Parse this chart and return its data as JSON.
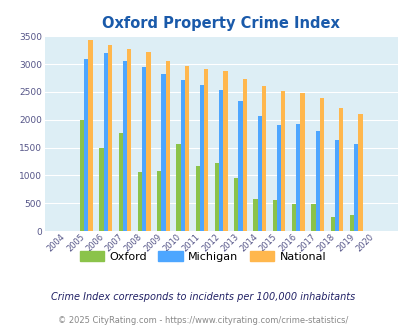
{
  "title": "Oxford Property Crime Index",
  "years": [
    "2004",
    "2005",
    "2006",
    "2007",
    "2008",
    "2009",
    "2010",
    "2011",
    "2012",
    "2013",
    "2014",
    "2015",
    "2016",
    "2017",
    "2018",
    "2019",
    "2020"
  ],
  "oxford": [
    0,
    2000,
    1500,
    1770,
    1060,
    1070,
    1570,
    1170,
    1230,
    960,
    570,
    560,
    490,
    490,
    250,
    285,
    0
  ],
  "michigan": [
    0,
    3100,
    3200,
    3060,
    2940,
    2830,
    2720,
    2620,
    2540,
    2340,
    2060,
    1910,
    1930,
    1800,
    1640,
    1570,
    0
  ],
  "national": [
    0,
    3430,
    3340,
    3280,
    3210,
    3050,
    2960,
    2920,
    2870,
    2730,
    2600,
    2510,
    2480,
    2390,
    2210,
    2110,
    0
  ],
  "oxford_color": "#8bc34a",
  "michigan_color": "#4da6ff",
  "national_color": "#ffb74d",
  "bg_color": "#ddeef5",
  "title_color": "#1a5aaa",
  "ylim": [
    0,
    3500
  ],
  "yticks": [
    0,
    500,
    1000,
    1500,
    2000,
    2500,
    3000,
    3500
  ],
  "footnote1": "Crime Index corresponds to incidents per 100,000 inhabitants",
  "footnote2": "© 2025 CityRating.com - https://www.cityrating.com/crime-statistics/",
  "legend_labels": [
    "Oxford",
    "Michigan",
    "National"
  ]
}
